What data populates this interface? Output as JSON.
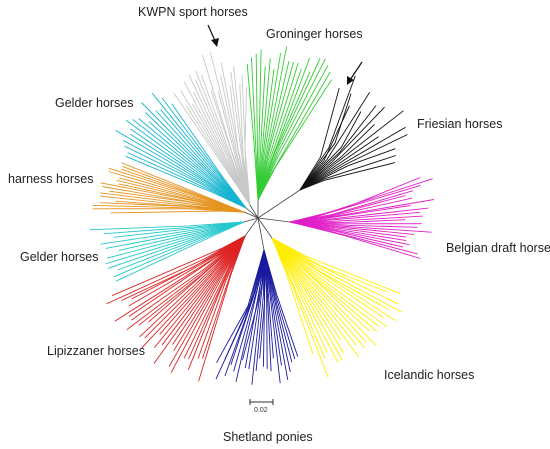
{
  "figure": {
    "type": "unrooted neighbor-joining tree",
    "clusters": [
      {
        "name": "KWPN sport horses",
        "color": "#c8c8c8"
      },
      {
        "name": "Groninger horses",
        "color": "#33cc33"
      },
      {
        "name": "Friesian horses",
        "color": "#111111"
      },
      {
        "name": "Belgian draft horses",
        "color": "#e020c8"
      },
      {
        "name": "Icelandic horses",
        "color": "#ffee00"
      },
      {
        "name": "Shetland ponies",
        "color": "#1a1aa0"
      },
      {
        "name": "Lipizzaner horses",
        "color": "#dd2222"
      },
      {
        "name": "Gelder horses (lower)",
        "label": "Gelder horses",
        "color": "#22c8cc"
      },
      {
        "name": "harness horses",
        "color": "#e69420"
      },
      {
        "name": "Gelder horses (upper)",
        "label": "Gelder horses",
        "color": "#14b4d0"
      }
    ],
    "scale_bar": {
      "label": "0.02"
    },
    "arrows": [
      "arrow-kwpn",
      "arrow-groninger"
    ]
  },
  "labels": {
    "kwpn": "KWPN sport horses",
    "groninger": "Groninger horses",
    "friesian": "Friesian horses",
    "belgian": "Belgian draft horses",
    "icelandic": "Icelandic horses",
    "shetland": "Shetland ponies",
    "lipizzaner": "Lipizzaner horses",
    "gelder_lower": "Gelder horses",
    "harness": "harness horses",
    "gelder_upper": "Gelder horses"
  }
}
